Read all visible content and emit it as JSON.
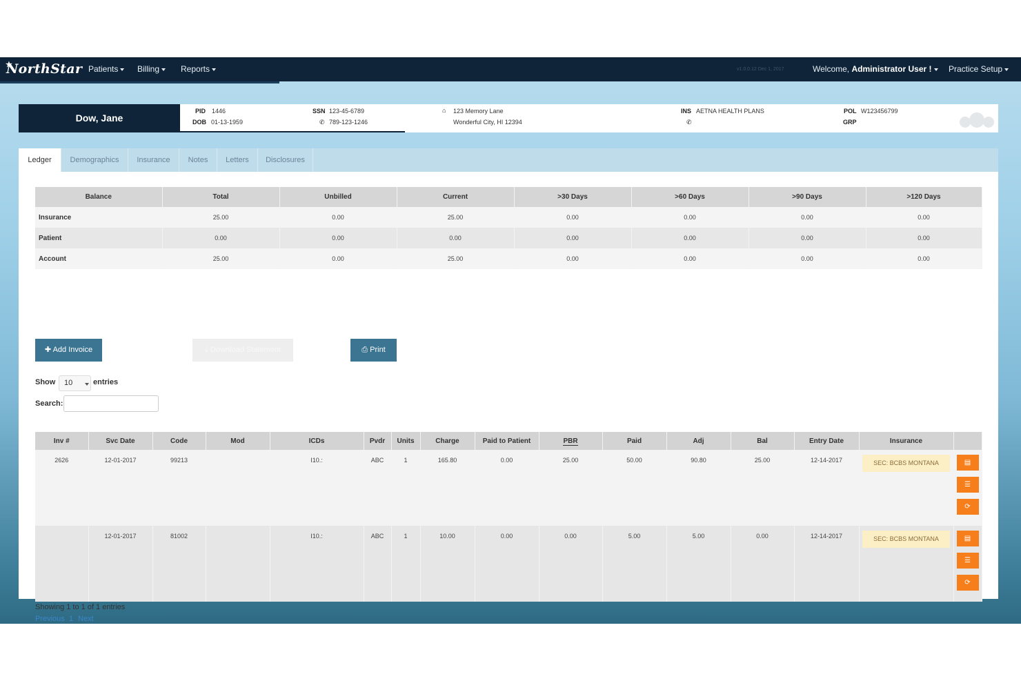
{
  "nav": {
    "brand": "NorthStar",
    "menus": [
      "Patients",
      "Billing",
      "Reports"
    ],
    "version": "v1.0.0.12 Dec 1, 2017",
    "welcome_prefix": "Welcome,",
    "welcome_user": "Administrator User !",
    "practice_setup": "Practice Setup"
  },
  "patient": {
    "name": "Dow, Jane",
    "pid_label": "PID",
    "pid": "1446",
    "dob_label": "DOB",
    "dob": "01-13-1959",
    "ssn_label": "SSN",
    "ssn": "123-45-6789",
    "phone": "789-123-1246",
    "address1": "123 Memory Lane",
    "address2": "Wonderful City, HI 12394",
    "ins_label": "INS",
    "ins": "AETNA HEALTH PLANS",
    "pol_label": "POL",
    "pol": "W123456799",
    "grp_label": "GRP"
  },
  "tabs": [
    "Ledger",
    "Demographics",
    "Insurance",
    "Notes",
    "Letters",
    "Disclosures"
  ],
  "balance": {
    "headers": [
      "Balance",
      "Total",
      "Unbilled",
      "Current",
      ">30 Days",
      ">60 Days",
      ">90 Days",
      ">120 Days"
    ],
    "rows": [
      [
        "Insurance",
        "25.00",
        "0.00",
        "25.00",
        "0.00",
        "0.00",
        "0.00",
        "0.00"
      ],
      [
        "Patient",
        "0.00",
        "0.00",
        "0.00",
        "0.00",
        "0.00",
        "0.00",
        "0.00"
      ],
      [
        "Account",
        "25.00",
        "0.00",
        "25.00",
        "0.00",
        "0.00",
        "0.00",
        "0.00"
      ]
    ]
  },
  "buttons": {
    "add_invoice": "Add Invoice",
    "download_statement": "Download Statement",
    "print": "Print"
  },
  "controls": {
    "show_label": "Show",
    "show_value": "10",
    "entries_label": "entries",
    "search_label": "Search:"
  },
  "invoices": {
    "headers": [
      "Inv #",
      "Svc Date",
      "Code",
      "Mod",
      "ICDs",
      "Pvdr",
      "Units",
      "Charge",
      "Paid to Patient",
      "PBR",
      "Paid",
      "Adj",
      "Bal",
      "Entry Date",
      "Insurance",
      ""
    ],
    "rows": [
      [
        "2626",
        "12-01-2017",
        "99213",
        "",
        "I10.:",
        "ABC",
        "1",
        "165.80",
        "0.00",
        "25.00",
        "50.00",
        "90.80",
        "25.00",
        "12-14-2017",
        "SEC: BCBS MONTANA"
      ],
      [
        "",
        "12-01-2017",
        "81002",
        "",
        "I10.:",
        "ABC",
        "1",
        "10.00",
        "0.00",
        "0.00",
        "5.00",
        "5.00",
        "0.00",
        "12-14-2017",
        "SEC: BCBS MONTANA"
      ]
    ]
  },
  "footer": {
    "showing": "Showing 1 to 1 of 1 entries",
    "previous": "Previous",
    "page": "1",
    "next": "Next"
  },
  "colors": {
    "navbar": "#0f2438",
    "primary_button": "#3c7592",
    "action_button": "#f77f1b",
    "insurance_badge": "#fcefc6",
    "link": "#3a86c8"
  },
  "icons": {
    "add": "plus-icon",
    "download": "download-icon",
    "print": "print-icon",
    "home": "home-icon",
    "phone": "phone-icon",
    "row_actions": [
      "document-icon",
      "list-icon",
      "refresh-icon"
    ]
  }
}
